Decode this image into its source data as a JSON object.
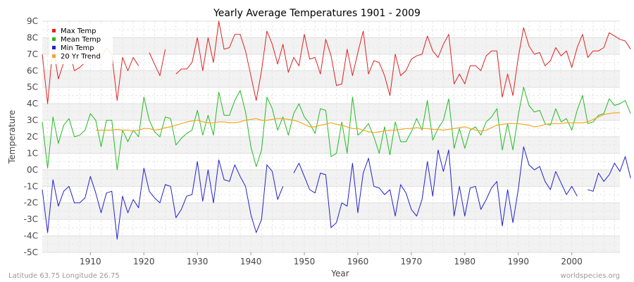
{
  "chart_data": {
    "type": "line",
    "title": "Yearly Average Temperatures 1901 - 2009",
    "xlabel": "Year",
    "ylabel": "Temperature",
    "xlim": [
      1901,
      2009
    ],
    "ylim": [
      -5,
      9
    ],
    "x_ticks": [
      1910,
      1920,
      1930,
      1940,
      1950,
      1960,
      1970,
      1980,
      1990,
      2000
    ],
    "y_ticks": [
      {
        "value": -5,
        "label": "-5C"
      },
      {
        "value": -4,
        "label": "-4C"
      },
      {
        "value": -3,
        "label": "-3C"
      },
      {
        "value": -2,
        "label": "-2C"
      },
      {
        "value": -1,
        "label": "-1C"
      },
      {
        "value": 0,
        "label": "0C"
      },
      {
        "value": 1,
        "label": "1C"
      },
      {
        "value": 2,
        "label": "2C"
      },
      {
        "value": 3,
        "label": "3C"
      },
      {
        "value": 4,
        "label": "4C"
      },
      {
        "value": 5,
        "label": "5C"
      },
      {
        "value": 6,
        "label": "6C"
      },
      {
        "value": 7,
        "label": "7C"
      },
      {
        "value": 8,
        "label": "8C"
      },
      {
        "value": 9,
        "label": "9C"
      }
    ],
    "grid": true,
    "legend_position": "top-left",
    "series": [
      {
        "name": "Max Temp",
        "color": "#dd2222",
        "x_start": 1901,
        "values": [
          7.0,
          4.0,
          7.5,
          5.5,
          6.5,
          7.3,
          6.0,
          6.2,
          6.5,
          6.8,
          7.1,
          6.8,
          7.4,
          7.0,
          4.2,
          6.8,
          6.0,
          6.8,
          6.3,
          null,
          7.1,
          6.4,
          5.7,
          7.3,
          null,
          5.8,
          6.1,
          6.1,
          6.5,
          8.0,
          6.0,
          8.0,
          6.5,
          9.0,
          7.3,
          7.4,
          8.2,
          8.2,
          7.2,
          5.7,
          4.2,
          6.0,
          8.4,
          7.6,
          6.4,
          7.6,
          5.9,
          6.8,
          6.3,
          8.2,
          6.7,
          6.8,
          5.8,
          7.9,
          6.9,
          5.1,
          5.2,
          7.3,
          5.7,
          7.1,
          8.4,
          5.8,
          6.6,
          6.5,
          5.7,
          4.5,
          7.0,
          5.7,
          6.0,
          6.7,
          6.9,
          7.0,
          8.1,
          7.2,
          6.8,
          7.6,
          8.2,
          5.2,
          5.8,
          5.2,
          6.3,
          6.3,
          6.0,
          6.9,
          7.2,
          7.2,
          4.4,
          5.8,
          4.5,
          6.8,
          8.6,
          7.5,
          7.0,
          7.1,
          6.3,
          6.6,
          7.4,
          6.9,
          7.2,
          6.2,
          7.4,
          8.2,
          6.8,
          7.2,
          7.2,
          7.4,
          8.3,
          8.1,
          7.9,
          7.8,
          7.3
        ]
      },
      {
        "name": "Mean Temp",
        "color": "#22bb22",
        "x_start": 1901,
        "values": [
          2.9,
          0.1,
          3.2,
          1.6,
          2.7,
          3.1,
          2.0,
          2.1,
          2.4,
          3.4,
          3.0,
          1.4,
          3.0,
          3.0,
          0.0,
          2.4,
          1.7,
          2.4,
          2.0,
          4.4,
          3.0,
          2.3,
          2.0,
          3.2,
          3.1,
          1.5,
          1.9,
          2.2,
          2.4,
          3.6,
          2.1,
          3.3,
          2.1,
          4.7,
          3.3,
          3.3,
          4.2,
          4.8,
          3.5,
          1.4,
          0.2,
          1.2,
          4.4,
          3.7,
          2.4,
          3.2,
          2.1,
          3.4,
          4.0,
          3.2,
          2.8,
          2.2,
          3.7,
          3.6,
          0.8,
          1.0,
          2.9,
          1.0,
          4.4,
          2.1,
          2.4,
          2.8,
          2.0,
          1.0,
          2.6,
          0.9,
          2.9,
          1.7,
          1.7,
          2.3,
          3.1,
          2.4,
          4.2,
          1.8,
          2.5,
          3.0,
          4.3,
          1.3,
          2.5,
          1.3,
          2.4,
          2.6,
          2.1,
          2.9,
          3.2,
          3.7,
          1.2,
          2.8,
          1.2,
          3.3,
          5.0,
          3.9,
          3.5,
          3.6,
          2.8,
          2.7,
          3.7,
          2.9,
          3.1,
          2.4,
          3.6,
          4.5,
          2.8,
          2.9,
          3.3,
          3.4,
          4.3,
          3.9,
          4.0,
          4.2,
          3.4
        ]
      },
      {
        "name": "Min Temp",
        "color": "#2222cc",
        "x_start": 1901,
        "values": [
          -1.2,
          -3.8,
          -0.6,
          -2.2,
          -1.3,
          -1.0,
          -2.0,
          -2.0,
          -1.7,
          -0.4,
          -1.4,
          -2.6,
          -1.4,
          -1.3,
          -4.2,
          -1.6,
          -2.6,
          -1.8,
          -2.3,
          0.1,
          -1.3,
          -1.7,
          -2.0,
          -0.9,
          -1.0,
          -2.9,
          -2.4,
          -1.6,
          -1.5,
          0.5,
          -1.9,
          0.0,
          -2.0,
          0.6,
          -0.6,
          -0.7,
          0.3,
          -0.4,
          -1.0,
          -2.7,
          -3.8,
          -3.0,
          0.3,
          -0.1,
          -1.8,
          -1.0,
          null,
          -0.2,
          0.4,
          -0.4,
          -1.2,
          -1.4,
          -0.2,
          -0.3,
          -3.5,
          -3.2,
          -2.0,
          -2.2,
          0.4,
          -2.6,
          -0.2,
          0.7,
          -1.0,
          -1.1,
          -1.5,
          -1.2,
          -2.8,
          -0.9,
          -1.4,
          -2.4,
          -2.8,
          -1.8,
          0.5,
          -1.6,
          1.2,
          -0.1,
          1.2,
          -2.8,
          -1.0,
          -2.8,
          -1.1,
          -1.0,
          -2.4,
          -1.8,
          -1.1,
          -0.7,
          -3.4,
          -1.2,
          -3.2,
          -1.2,
          1.4,
          0.3,
          0.0,
          0.2,
          -0.7,
          -1.2,
          -0.1,
          -0.8,
          -1.5,
          -1.0,
          -1.6,
          null,
          -1.2,
          -1.3,
          -0.2,
          -0.7,
          -0.3,
          0.4,
          -0.1,
          0.8,
          -0.5
        ]
      },
      {
        "name": "20 Yr Trend",
        "color": "#f5a623",
        "x_start": 1911,
        "values": [
          2.4,
          2.4,
          2.4,
          2.4,
          2.45,
          2.4,
          2.4,
          2.35,
          2.4,
          2.5,
          2.5,
          2.4,
          2.45,
          2.55,
          2.6,
          2.7,
          2.8,
          2.9,
          2.95,
          3.0,
          2.9,
          2.85,
          2.85,
          2.9,
          2.9,
          2.85,
          2.85,
          2.9,
          3.0,
          3.05,
          3.1,
          3.0,
          3.0,
          3.05,
          3.1,
          3.1,
          3.05,
          3.0,
          2.9,
          2.75,
          2.6,
          2.6,
          2.7,
          2.75,
          2.85,
          2.75,
          2.7,
          2.6,
          2.5,
          2.5,
          2.4,
          2.3,
          2.25,
          2.3,
          2.35,
          2.4,
          2.4,
          2.45,
          2.5,
          2.5,
          2.55,
          2.5,
          2.5,
          2.45,
          2.45,
          2.4,
          2.45,
          2.5,
          2.55,
          2.6,
          2.5,
          2.4,
          2.35,
          2.4,
          2.55,
          2.7,
          2.75,
          2.8,
          2.8,
          2.8,
          2.75,
          2.7,
          2.6,
          2.65,
          2.75,
          2.8,
          2.8,
          2.8,
          2.85,
          2.85,
          2.85,
          2.85,
          2.9,
          3.05,
          3.2,
          3.35,
          3.4,
          3.45,
          3.45
        ]
      }
    ]
  },
  "footer": {
    "location": "Latitude 63.75 Longitude 26.75",
    "source": "worldspecies.org"
  }
}
